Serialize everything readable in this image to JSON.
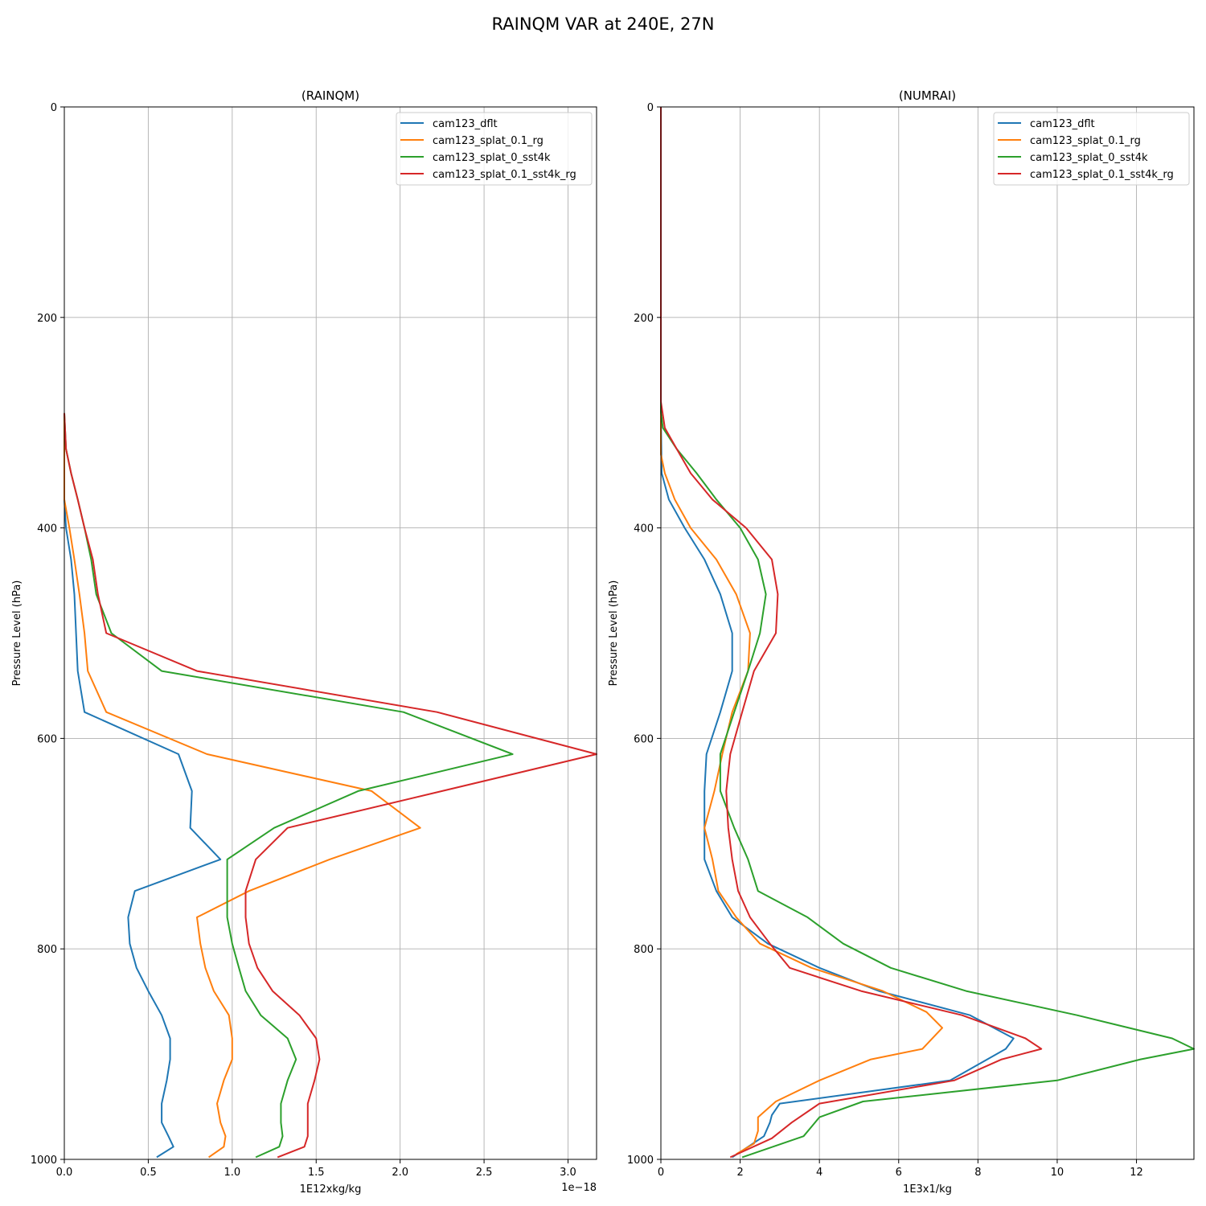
{
  "figure": {
    "suptitle": "RAINQM VAR at 240E, 27N"
  },
  "colors": {
    "cam123_dflt": "#1f77b4",
    "cam123_splat_0.1_rg": "#ff7f0e",
    "cam123_splat_0_sst4k": "#2ca02c",
    "cam123_splat_0.1_sst4k_rg": "#d62728"
  },
  "chart_data": [
    {
      "type": "line",
      "title": "(RAINQM)",
      "xlabel": "1E12xkg/kg",
      "ylabel": "Pressure Level (hPa)",
      "offset_label": "1e−18",
      "xlim": [
        0,
        3.17
      ],
      "ylim": [
        1000,
        0
      ],
      "y_inverted": true,
      "xticks": [
        0,
        0.5,
        1.0,
        1.5,
        2.0,
        2.5,
        3.0
      ],
      "xtick_labels": [
        "0.0",
        "0.5",
        "1.0",
        "1.5",
        "2.0",
        "2.5",
        "3.0"
      ],
      "yticks": [
        0,
        200,
        400,
        600,
        800,
        1000
      ],
      "ytick_labels": [
        "0",
        "200",
        "400",
        "600",
        "800",
        "1000"
      ],
      "grid": true,
      "legend_position": "top-right",
      "y_levels": [
        291,
        325,
        348,
        373,
        400,
        430,
        463,
        500,
        536,
        575,
        615,
        650,
        685,
        715,
        745,
        770,
        795,
        818,
        840,
        863,
        885,
        905,
        925,
        947,
        965,
        978,
        988,
        998
      ],
      "series": [
        {
          "name": "cam123_dflt",
          "color": "#1f77b4",
          "x": [
            0,
            0,
            0,
            0,
            0.01,
            0.04,
            0.06,
            0.07,
            0.08,
            0.12,
            0.68,
            0.76,
            0.75,
            0.93,
            0.42,
            0.38,
            0.39,
            0.43,
            0.5,
            0.58,
            0.63,
            0.63,
            0.61,
            0.58,
            0.58,
            0.62,
            0.65,
            0.55
          ]
        },
        {
          "name": "cam123_splat_0.1_rg",
          "color": "#ff7f0e",
          "x": [
            0,
            0,
            0,
            0,
            0.03,
            0.06,
            0.09,
            0.12,
            0.14,
            0.25,
            0.85,
            1.83,
            2.12,
            1.58,
            1.1,
            0.79,
            0.81,
            0.84,
            0.89,
            0.98,
            1.0,
            1.0,
            0.95,
            0.91,
            0.93,
            0.96,
            0.95,
            0.86
          ]
        },
        {
          "name": "cam123_splat_0_sst4k",
          "color": "#2ca02c",
          "x": [
            0,
            0.01,
            0.04,
            0.08,
            0.12,
            0.16,
            0.19,
            0.28,
            0.58,
            2.02,
            2.67,
            1.75,
            1.25,
            0.97,
            0.97,
            0.97,
            1.0,
            1.04,
            1.08,
            1.17,
            1.33,
            1.38,
            1.33,
            1.29,
            1.29,
            1.3,
            1.28,
            1.14
          ]
        },
        {
          "name": "cam123_splat_0.1_sst4k_rg",
          "color": "#d62728",
          "x": [
            0,
            0.01,
            0.04,
            0.08,
            0.12,
            0.17,
            0.2,
            0.25,
            0.79,
            2.22,
            3.17,
            2.25,
            1.33,
            1.14,
            1.08,
            1.08,
            1.1,
            1.15,
            1.24,
            1.4,
            1.5,
            1.52,
            1.49,
            1.45,
            1.45,
            1.45,
            1.43,
            1.27
          ]
        }
      ]
    },
    {
      "type": "line",
      "title": "(NUMRAI)",
      "xlabel": "1E3x1/kg",
      "ylabel": "Pressure Level (hPa)",
      "xlim": [
        0,
        13.45
      ],
      "ylim": [
        1000,
        0
      ],
      "y_inverted": true,
      "xticks": [
        0,
        2,
        4,
        6,
        8,
        10,
        12
      ],
      "xtick_labels": [
        "0",
        "2",
        "4",
        "6",
        "8",
        "10",
        "12"
      ],
      "yticks": [
        0,
        200,
        400,
        600,
        800,
        1000
      ],
      "ytick_labels": [
        "0",
        "200",
        "400",
        "600",
        "800",
        "1000"
      ],
      "grid": true,
      "legend_position": "top-right",
      "series": [
        {
          "name": "cam123_dflt",
          "color": "#1f77b4",
          "y": [
            0,
            290,
            348,
            373,
            400,
            430,
            463,
            500,
            536,
            575,
            615,
            650,
            685,
            715,
            745,
            770,
            795,
            818,
            840,
            863,
            885,
            895,
            925,
            947,
            958,
            965,
            978,
            998
          ],
          "x": [
            0,
            0,
            0.02,
            0.2,
            0.6,
            1.1,
            1.5,
            1.8,
            1.8,
            1.5,
            1.15,
            1.1,
            1.1,
            1.1,
            1.4,
            1.8,
            2.7,
            4.0,
            5.5,
            7.8,
            8.9,
            8.7,
            7.3,
            3.0,
            2.8,
            2.75,
            2.6,
            1.8
          ]
        },
        {
          "name": "cam123_splat_0.1_rg",
          "color": "#ff7f0e",
          "y": [
            0,
            330,
            348,
            373,
            400,
            430,
            463,
            500,
            536,
            575,
            615,
            650,
            685,
            715,
            745,
            770,
            795,
            818,
            840,
            860,
            875,
            895,
            905,
            925,
            945,
            960,
            973,
            985,
            995
          ],
          "x": [
            0,
            0,
            0.1,
            0.35,
            0.75,
            1.4,
            1.9,
            2.25,
            2.2,
            1.8,
            1.55,
            1.35,
            1.1,
            1.3,
            1.45,
            1.9,
            2.5,
            3.8,
            5.6,
            6.7,
            7.1,
            6.6,
            5.3,
            4.0,
            2.9,
            2.45,
            2.45,
            2.35,
            1.9
          ]
        },
        {
          "name": "cam123_splat_0_sst4k",
          "color": "#2ca02c",
          "y": [
            0,
            290,
            305,
            325,
            348,
            373,
            400,
            430,
            463,
            500,
            536,
            575,
            615,
            650,
            685,
            715,
            745,
            770,
            795,
            818,
            840,
            863,
            885,
            895,
            905,
            925,
            945,
            960,
            978,
            998
          ],
          "x": [
            0,
            0,
            0.05,
            0.4,
            0.9,
            1.4,
            2.0,
            2.45,
            2.65,
            2.5,
            2.2,
            1.85,
            1.5,
            1.5,
            1.85,
            2.2,
            2.45,
            3.7,
            4.6,
            5.8,
            7.7,
            10.5,
            12.9,
            13.45,
            12.1,
            10.0,
            5.1,
            4.0,
            3.6,
            2.05
          ]
        },
        {
          "name": "cam123_splat_0.1_sst4k_rg",
          "color": "#d62728",
          "y": [
            0,
            280,
            305,
            325,
            348,
            373,
            400,
            430,
            463,
            500,
            536,
            575,
            615,
            650,
            685,
            715,
            745,
            770,
            795,
            818,
            840,
            863,
            885,
            895,
            905,
            925,
            947,
            965,
            980,
            998
          ],
          "x": [
            0,
            0,
            0.1,
            0.4,
            0.75,
            1.3,
            2.15,
            2.8,
            2.95,
            2.9,
            2.35,
            2.05,
            1.75,
            1.65,
            1.7,
            1.8,
            1.95,
            2.25,
            2.75,
            3.25,
            5.05,
            7.6,
            9.2,
            9.6,
            8.6,
            7.4,
            4.0,
            3.3,
            2.8,
            1.75
          ]
        }
      ]
    }
  ]
}
